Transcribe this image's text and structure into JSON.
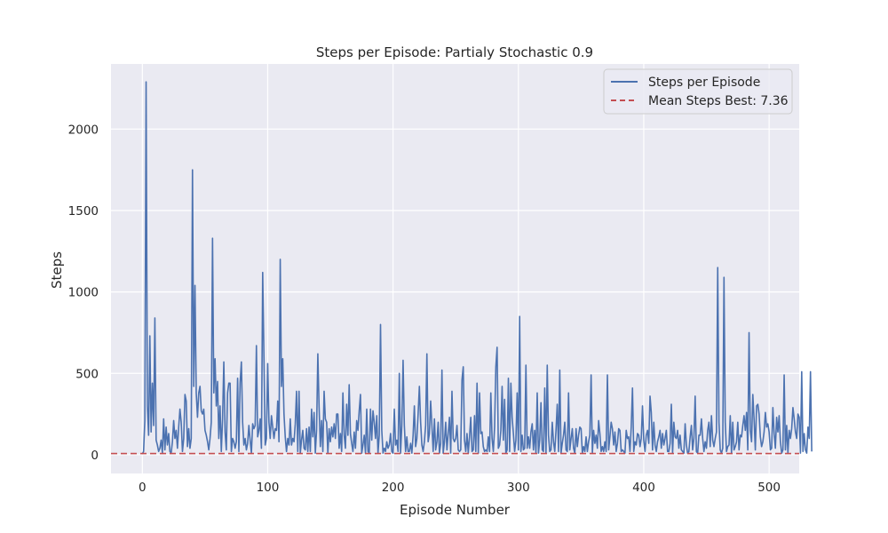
{
  "chart_data": {
    "type": "line",
    "title": "Steps per Episode: Partialy Stochastic 0.9",
    "xlabel": "Episode Number",
    "ylabel": "Steps",
    "xlim": [
      -25,
      524
    ],
    "ylim": [
      -115,
      2400
    ],
    "grid": true,
    "legend_position": "top-right",
    "x_ticks": [
      0,
      100,
      200,
      300,
      400,
      500
    ],
    "y_ticks": [
      0,
      500,
      1000,
      1500,
      2000
    ],
    "x_tick_labels": [
      "0",
      "100",
      "200",
      "300",
      "400",
      "500"
    ],
    "y_tick_labels": [
      "0",
      "500",
      "1000",
      "1500",
      "2000"
    ],
    "colors": {
      "background": "#eaeaf2",
      "grid": "#ffffff",
      "series": "#4c72b0",
      "mean_line": "#c44e52",
      "text": "#262626"
    },
    "series": [
      {
        "name": "Steps per Episode",
        "color": "#4c72b0",
        "style": "solid",
        "x_start": 0,
        "x_step": 1,
        "values": [
          5,
          20,
          210,
          2290,
          300,
          120,
          730,
          140,
          440,
          180,
          840,
          90,
          60,
          20,
          40,
          90,
          10,
          220,
          30,
          170,
          60,
          130,
          20,
          10,
          80,
          210,
          100,
          150,
          40,
          170,
          280,
          200,
          20,
          100,
          370,
          330,
          50,
          160,
          40,
          100,
          1750,
          420,
          1040,
          380,
          230,
          380,
          420,
          270,
          250,
          280,
          150,
          120,
          80,
          30,
          100,
          200,
          1330,
          380,
          590,
          300,
          450,
          100,
          300,
          20,
          220,
          570,
          140,
          30,
          380,
          440,
          440,
          20,
          100,
          80,
          40,
          80,
          470,
          20,
          440,
          570,
          200,
          60,
          100,
          30,
          70,
          180,
          90,
          10,
          190,
          160,
          180,
          670,
          110,
          150,
          220,
          40,
          1120,
          600,
          60,
          100,
          560,
          200,
          100,
          240,
          170,
          100,
          160,
          150,
          330,
          80,
          1200,
          420,
          590,
          250,
          110,
          20,
          100,
          60,
          220,
          60,
          100,
          80,
          190,
          390,
          20,
          390,
          10,
          90,
          150,
          40,
          30,
          160,
          20,
          170,
          20,
          280,
          110,
          260,
          10,
          150,
          620,
          290,
          50,
          210,
          20,
          390,
          220,
          200,
          10,
          160,
          80,
          170,
          110,
          190,
          100,
          250,
          250,
          40,
          130,
          20,
          380,
          120,
          40,
          310,
          120,
          430,
          130,
          70,
          20,
          140,
          40,
          210,
          150,
          270,
          370,
          10,
          60,
          120,
          10,
          280,
          20,
          10,
          280,
          90,
          270,
          200,
          100,
          240,
          10,
          120,
          800,
          150,
          10,
          40,
          20,
          80,
          40,
          60,
          130,
          20,
          10,
          280,
          60,
          90,
          20,
          500,
          10,
          180,
          580,
          180,
          20,
          110,
          20,
          20,
          70,
          10,
          120,
          300,
          50,
          100,
          250,
          420,
          200,
          60,
          20,
          80,
          180,
          620,
          80,
          130,
          330,
          180,
          20,
          220,
          30,
          80,
          200,
          10,
          70,
          520,
          10,
          80,
          200,
          30,
          130,
          230,
          10,
          390,
          100,
          80,
          100,
          180,
          30,
          20,
          30,
          460,
          540,
          90,
          20,
          130,
          10,
          110,
          230,
          20,
          30,
          240,
          20,
          440,
          10,
          380,
          130,
          140,
          50,
          20,
          30,
          20,
          110,
          20,
          380,
          100,
          20,
          170,
          540,
          660,
          40,
          60,
          150,
          420,
          90,
          340,
          10,
          30,
          470,
          20,
          440,
          230,
          130,
          20,
          90,
          380,
          30,
          850,
          20,
          120,
          30,
          40,
          550,
          40,
          110,
          40,
          140,
          190,
          30,
          150,
          10,
          380,
          10,
          90,
          320,
          30,
          20,
          410,
          10,
          550,
          120,
          20,
          30,
          200,
          80,
          20,
          150,
          310,
          20,
          520,
          10,
          70,
          120,
          200,
          30,
          20,
          380,
          30,
          100,
          160,
          40,
          10,
          160,
          50,
          120,
          170,
          160,
          10,
          50,
          20,
          110,
          20,
          80,
          120,
          490,
          10,
          150,
          70,
          120,
          40,
          210,
          130,
          20,
          50,
          20,
          80,
          20,
          490,
          30,
          110,
          200,
          160,
          60,
          140,
          20,
          70,
          160,
          150,
          20,
          30,
          20,
          10,
          150,
          100,
          110,
          20,
          170,
          410,
          20,
          80,
          60,
          130,
          120,
          50,
          100,
          300,
          90,
          20,
          120,
          150,
          70,
          360,
          260,
          30,
          200,
          60,
          20,
          80,
          110,
          150,
          40,
          130,
          60,
          100,
          150,
          20,
          20,
          70,
          310,
          10,
          200,
          110,
          100,
          150,
          40,
          120,
          30,
          20,
          10,
          190,
          60,
          10,
          20,
          110,
          180,
          30,
          100,
          360,
          20,
          10,
          120,
          120,
          220,
          100,
          20,
          80,
          40,
          150,
          200,
          50,
          240,
          90,
          50,
          100,
          140,
          1150,
          200,
          30,
          10,
          40,
          1090,
          200,
          20,
          50,
          60,
          240,
          10,
          200,
          30,
          50,
          80,
          200,
          30,
          120,
          110,
          180,
          240,
          150,
          260,
          30,
          750,
          150,
          80,
          370,
          220,
          30,
          300,
          310,
          250,
          110,
          50,
          80,
          140,
          260,
          170,
          190,
          140,
          30,
          40,
          290,
          130,
          40,
          230,
          140,
          240,
          80,
          10,
          30,
          490,
          30,
          180,
          10,
          150,
          100,
          160,
          290,
          220,
          140,
          100,
          250,
          230,
          10,
          510,
          20,
          130,
          30,
          10,
          170,
          100,
          510,
          20
        ]
      },
      {
        "name": "Mean Steps Best: 7.36",
        "color": "#c44e52",
        "style": "dashed",
        "constant": 7.36
      }
    ]
  }
}
